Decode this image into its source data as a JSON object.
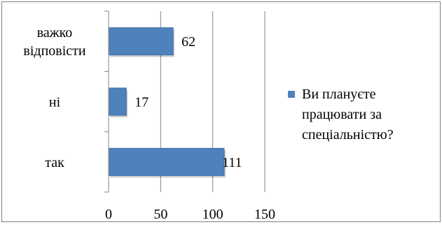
{
  "chart_data": {
    "type": "bar",
    "orientation": "horizontal",
    "categories": [
      "важко відповісти",
      "ні",
      "так"
    ],
    "category_lines": [
      [
        "важко",
        "відповісти"
      ],
      [
        "ні"
      ],
      [
        "так"
      ]
    ],
    "series": [
      {
        "name": "Ви плануєте працювати за спеціальністю?",
        "values": [
          62,
          17,
          111
        ]
      }
    ],
    "data_labels": [
      "62",
      "17",
      "111"
    ],
    "xlim": [
      0,
      150
    ],
    "xticks": [
      0,
      50,
      100,
      150
    ],
    "xtick_labels": [
      "0",
      "50",
      "100",
      "150"
    ],
    "grid": "vertical",
    "legend_position": "right",
    "legend_lines": [
      "Ви плануєте",
      "працювати за",
      "спеціальністю?"
    ],
    "colors": {
      "bar": "#4f81bd",
      "bar_edge": "#3d6da6",
      "grid": "#868686",
      "axis": "#868686"
    }
  }
}
